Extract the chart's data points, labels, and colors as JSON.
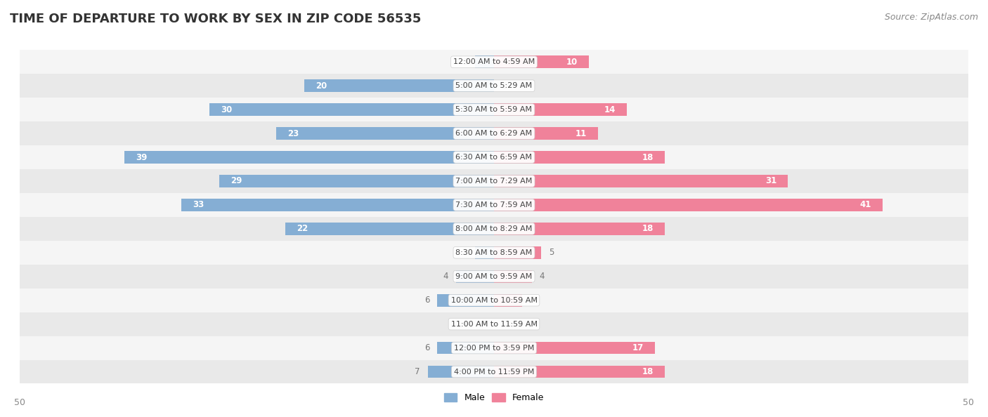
{
  "title": "TIME OF DEPARTURE TO WORK BY SEX IN ZIP CODE 56535",
  "source": "Source: ZipAtlas.com",
  "categories": [
    "12:00 AM to 4:59 AM",
    "5:00 AM to 5:29 AM",
    "5:30 AM to 5:59 AM",
    "6:00 AM to 6:29 AM",
    "6:30 AM to 6:59 AM",
    "7:00 AM to 7:29 AM",
    "7:30 AM to 7:59 AM",
    "8:00 AM to 8:29 AM",
    "8:30 AM to 8:59 AM",
    "9:00 AM to 9:59 AM",
    "10:00 AM to 10:59 AM",
    "11:00 AM to 11:59 AM",
    "12:00 PM to 3:59 PM",
    "4:00 PM to 11:59 PM"
  ],
  "male_values": [
    2,
    20,
    30,
    23,
    39,
    29,
    33,
    22,
    2,
    4,
    6,
    0,
    6,
    7
  ],
  "female_values": [
    10,
    0,
    14,
    11,
    18,
    31,
    41,
    18,
    5,
    4,
    3,
    0,
    17,
    18
  ],
  "male_color": "#85aed4",
  "female_color": "#f0829a",
  "row_colors": [
    "#f5f5f5",
    "#e9e9e9"
  ],
  "axis_max": 50,
  "title_fontsize": 13,
  "source_fontsize": 9,
  "bar_height": 0.52,
  "inside_threshold": 8,
  "label_fontsize": 8.5,
  "cat_fontsize": 8,
  "legend_male_color": "#85aed4",
  "legend_female_color": "#f0829a",
  "bottom_axis_label": "50"
}
